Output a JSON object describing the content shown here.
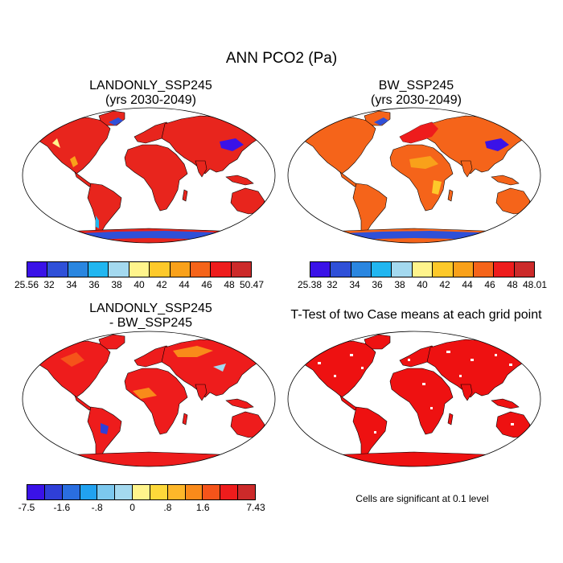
{
  "figure": {
    "title": "ANN PCO2 (Pa)"
  },
  "panels": [
    {
      "id": "p1",
      "title_line1": "LANDONLY_SSP245",
      "title_line2": "(yrs 2030-2049)"
    },
    {
      "id": "p2",
      "title_line1": "BW_SSP245",
      "title_line2": "(yrs 2030-2049)"
    },
    {
      "id": "p3",
      "title_line1": "LANDONLY_SSP245",
      "title_line2": "- BW_SSP245"
    },
    {
      "id": "p4",
      "title_line1": "T-Test of two Case means at each grid point",
      "title_line2": ""
    }
  ],
  "colorbars": [
    {
      "id": "cb1",
      "colors": [
        "#3a12e8",
        "#2f50d8",
        "#2a86e0",
        "#21b6f0",
        "#a4d9ef",
        "#fff48c",
        "#fdc92a",
        "#f9a11a",
        "#f5641a",
        "#ee1c1c",
        "#cc2a2a"
      ],
      "labels": [
        "25.56",
        "32",
        "34",
        "36",
        "38",
        "40",
        "42",
        "44",
        "46",
        "48",
        "50.47"
      ]
    },
    {
      "id": "cb2",
      "colors": [
        "#3a12e8",
        "#2f50d8",
        "#2a86e0",
        "#21b6f0",
        "#a4d9ef",
        "#fff48c",
        "#fdc92a",
        "#f9a11a",
        "#f5641a",
        "#ee1c1c",
        "#cc2a2a"
      ],
      "labels": [
        "25.38",
        "32",
        "34",
        "36",
        "38",
        "40",
        "42",
        "44",
        "46",
        "48",
        "48.01"
      ]
    },
    {
      "id": "cb3",
      "colors": [
        "#3a12e8",
        "#2f3fd8",
        "#2a6ee0",
        "#21a2f0",
        "#7cc8ee",
        "#a4d9ef",
        "#fff48c",
        "#fdd83a",
        "#fdb72a",
        "#f98a1a",
        "#f5541a",
        "#ee1c1c",
        "#cc2a2a"
      ],
      "labels": [
        "-7.5",
        "-1.6",
        "-.8",
        "0",
        ".8",
        "1.6",
        "7.43"
      ]
    }
  ],
  "chart_data": [
    {
      "type": "map",
      "title": "LANDONLY_SSP245 (yrs 2030-2049)",
      "variable": "PCO2",
      "units": "Pa",
      "min": 25.56,
      "max": 50.47,
      "levels": [
        32,
        34,
        36,
        38,
        40,
        42,
        44,
        46,
        48
      ],
      "dominant_range": "46-50.47"
    },
    {
      "type": "map",
      "title": "BW_SSP245 (yrs 2030-2049)",
      "variable": "PCO2",
      "units": "Pa",
      "min": 25.38,
      "max": 48.01,
      "levels": [
        32,
        34,
        36,
        38,
        40,
        42,
        44,
        46,
        48
      ],
      "dominant_range": "44-48.01"
    },
    {
      "type": "map",
      "title": "LANDONLY_SSP245 - BW_SSP245",
      "variable": "PCO2 difference",
      "units": "Pa",
      "min": -7.5,
      "max": 7.43,
      "levels": [
        -1.6,
        -0.8,
        0,
        0.8,
        1.6
      ],
      "dominant_range": "1.6-7.43"
    },
    {
      "type": "map",
      "title": "T-Test of two Case means at each grid point",
      "significance_level": 0.1
    }
  ],
  "note": "Cells are significant at 0.1 level"
}
